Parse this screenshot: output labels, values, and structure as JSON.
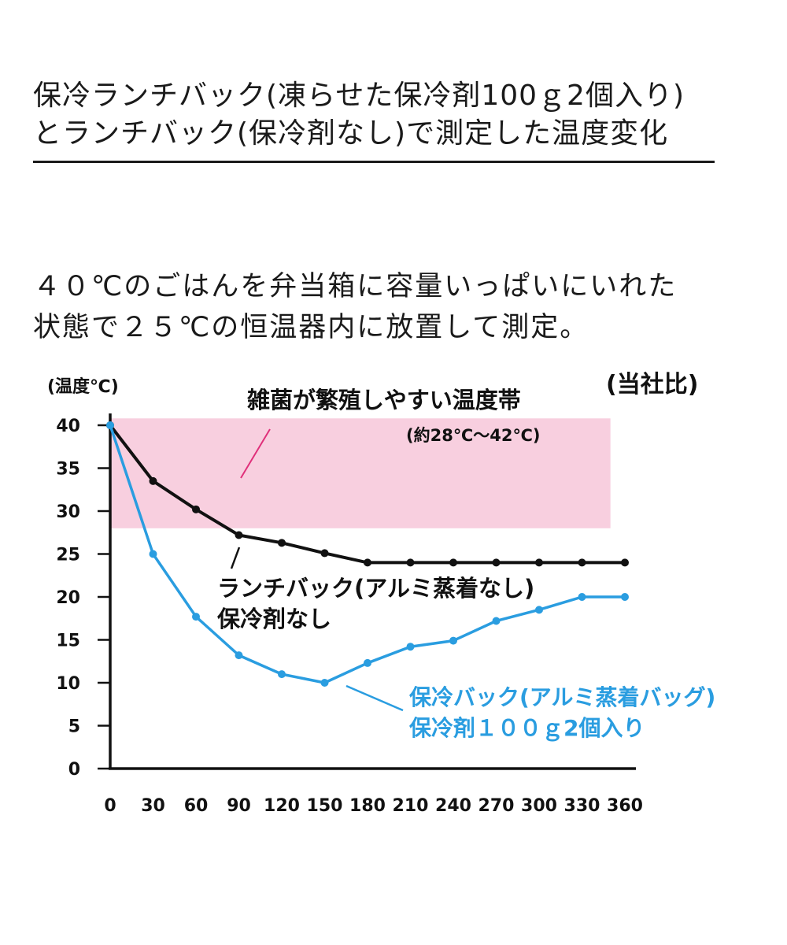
{
  "header": {
    "title_line1": "保冷ランチバック(凍らせた保冷剤100ｇ2個入り)",
    "title_line2": "とランチバック(保冷剤なし)で測定した温度変化"
  },
  "description": {
    "line1": "４０℃のごはんを弁当箱に容量いっぱいにいれた",
    "line2": "状態で２５℃の恒温器内に放置して測定。"
  },
  "colors": {
    "black_series": "#111111",
    "blue_series": "#2a9de0",
    "zone_fill": "#f8cfdf",
    "zone_stroke": "#e0307a"
  },
  "chart_data": {
    "type": "line",
    "ylabel": "(温度℃)",
    "note": "(当社比)",
    "xlim": [
      0,
      370
    ],
    "ylim": [
      0,
      40
    ],
    "x_ticks": [
      0,
      30,
      60,
      90,
      120,
      150,
      180,
      210,
      240,
      270,
      300,
      330,
      360
    ],
    "y_ticks": [
      0,
      5,
      10,
      15,
      20,
      25,
      30,
      35,
      40
    ],
    "x": [
      0,
      30,
      60,
      90,
      120,
      150,
      180,
      210,
      240,
      270,
      300,
      330,
      360
    ],
    "series": [
      {
        "name": "ランチバック(アルミ蒸着なし)保冷剤なし",
        "label_line1": "ランチバック(アルミ蒸着なし)",
        "label_line2": "保冷剤なし",
        "color": "#111111",
        "values": [
          40,
          33.5,
          30.2,
          27.2,
          26.3,
          25.1,
          24,
          24,
          24,
          24,
          24,
          24,
          24
        ]
      },
      {
        "name": "保冷バック(アルミ蒸着バッグ)保冷剤100ｇ2個入り",
        "label_line1": "保冷バック(アルミ蒸着バッグ)",
        "label_line2": "保冷剤１００ｇ2個入り",
        "color": "#2a9de0",
        "values": [
          40,
          25,
          17.7,
          13.2,
          11,
          10,
          12.3,
          14.2,
          14.9,
          17.2,
          18.5,
          20,
          20
        ]
      }
    ],
    "zone": {
      "label": "雑菌が繁殖しやすい温度帯",
      "sublabel": "(約28℃～42℃)",
      "y_range": [
        28,
        40.8
      ],
      "x_range": [
        0,
        340
      ]
    }
  }
}
